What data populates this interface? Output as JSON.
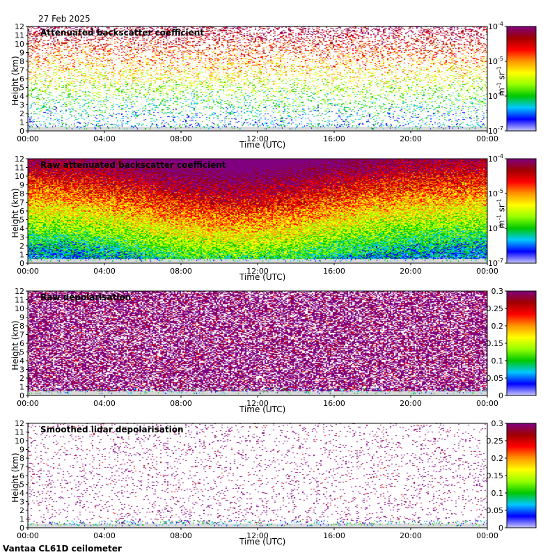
{
  "date": "27 Feb 2025",
  "footer": "Vantaa CL61D ceilometer",
  "colors": {
    "cmap": [
      "#ffffff",
      "#c8c8ff",
      "#0000ff",
      "#00c8ff",
      "#00c800",
      "#96ff00",
      "#ffff00",
      "#ff9600",
      "#ff0000",
      "#a00000",
      "#800080"
    ],
    "ground": "#d9d9d9"
  },
  "chart_data": [
    {
      "type": "heatmap",
      "title": "Attenuated backscatter coefficient",
      "xlabel": "Time (UTC)",
      "ylabel": "Height (km)",
      "x_ticks": [
        "00:00",
        "04:00",
        "08:00",
        "12:00",
        "16:00",
        "20:00",
        "00:00"
      ],
      "y_ticks": [
        "0",
        "1",
        "2",
        "3",
        "4",
        "5",
        "6",
        "7",
        "8",
        "9",
        "10",
        "11",
        "12"
      ],
      "ylim": [
        0,
        12
      ],
      "colorbar": {
        "scale": "log",
        "ticks": [
          "10^-7",
          "10^-6",
          "10^-5",
          "10^-4"
        ],
        "unit": "m^-1 sr^-1"
      },
      "density": 0.35
    },
    {
      "type": "heatmap",
      "title": "Raw attenuated backscatter coefficient",
      "xlabel": "Time (UTC)",
      "ylabel": "Height (km)",
      "x_ticks": [
        "00:00",
        "04:00",
        "08:00",
        "12:00",
        "16:00",
        "20:00",
        "00:00"
      ],
      "y_ticks": [
        "0",
        "1",
        "2",
        "3",
        "4",
        "5",
        "6",
        "7",
        "8",
        "9",
        "10",
        "11",
        "12"
      ],
      "ylim": [
        0,
        12
      ],
      "colorbar": {
        "scale": "log",
        "ticks": [
          "10^-7",
          "10^-6",
          "10^-5",
          "10^-4"
        ],
        "unit": "m^-1 sr^-1"
      },
      "density": 1.0
    },
    {
      "type": "heatmap",
      "title": "Raw depolarisation",
      "xlabel": "Time (UTC)",
      "ylabel": "Height (km)",
      "x_ticks": [
        "00:00",
        "04:00",
        "08:00",
        "12:00",
        "16:00",
        "20:00",
        "00:00"
      ],
      "y_ticks": [
        "0",
        "1",
        "2",
        "3",
        "4",
        "5",
        "6",
        "7",
        "8",
        "9",
        "10",
        "11",
        "12"
      ],
      "ylim": [
        0,
        12
      ],
      "colorbar": {
        "scale": "linear",
        "ticks": [
          "0",
          "0.05",
          "0.1",
          "0.15",
          "0.2",
          "0.25",
          "0.3"
        ],
        "unit": ""
      },
      "density": 0.65
    },
    {
      "type": "heatmap",
      "title": "Smoothed lidar depolarisation",
      "xlabel": "Time (UTC)",
      "ylabel": "Height (km)",
      "x_ticks": [
        "00:00",
        "04:00",
        "08:00",
        "12:00",
        "16:00",
        "20:00",
        "00:00"
      ],
      "y_ticks": [
        "0",
        "1",
        "2",
        "3",
        "4",
        "5",
        "6",
        "7",
        "8",
        "9",
        "10",
        "11",
        "12"
      ],
      "ylim": [
        0,
        12
      ],
      "colorbar": {
        "scale": "linear",
        "ticks": [
          "0",
          "0.05",
          "0.1",
          "0.15",
          "0.2",
          "0.25",
          "0.3"
        ],
        "unit": ""
      },
      "density": 0.08
    }
  ]
}
